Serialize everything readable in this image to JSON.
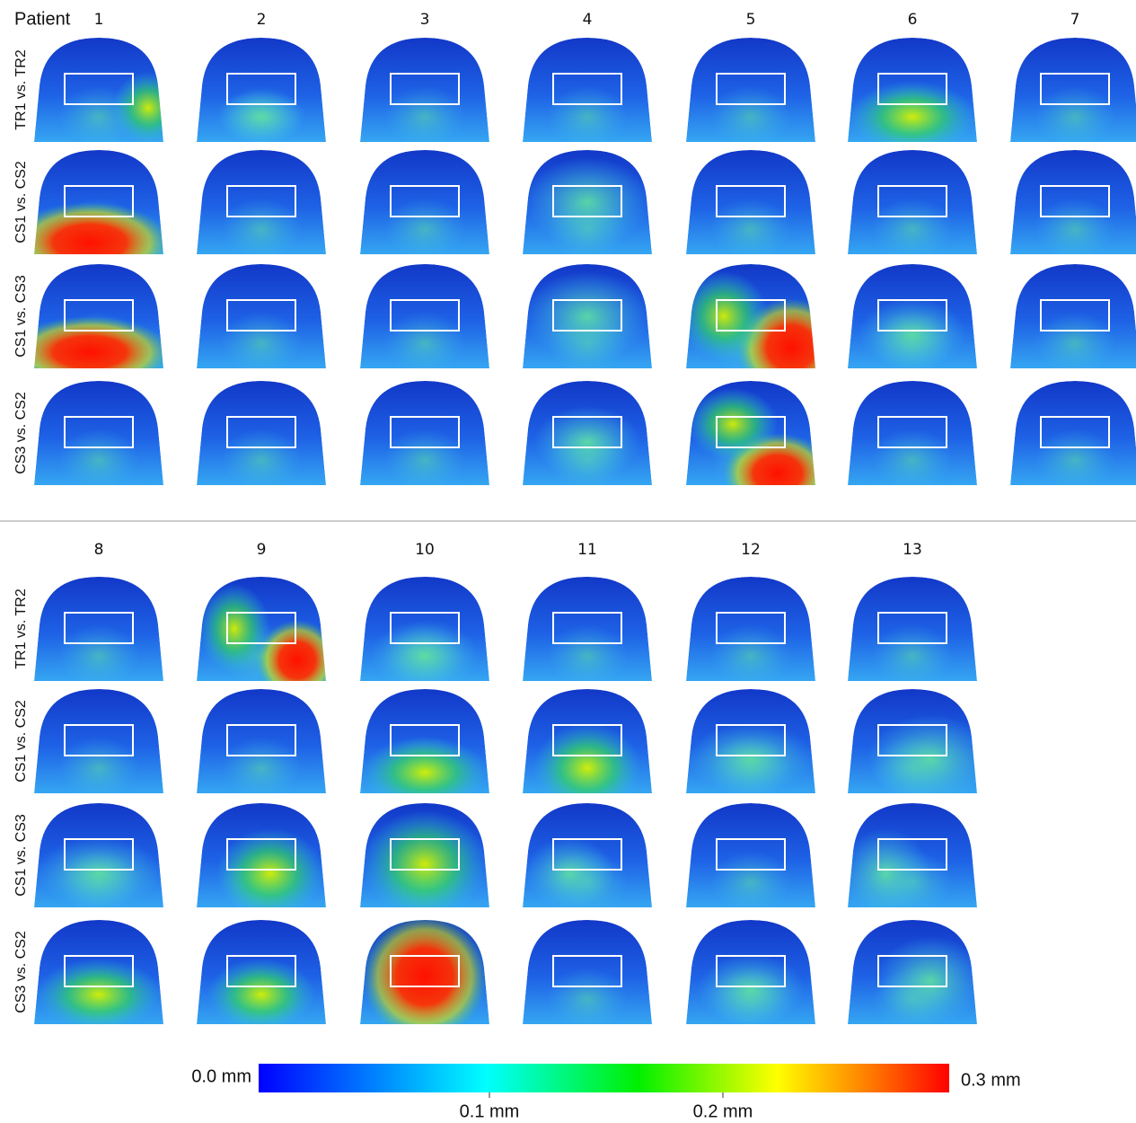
{
  "header": {
    "label": "Patient"
  },
  "panels": [
    {
      "patients": [
        "1",
        "2",
        "3",
        "4",
        "5",
        "6",
        "7"
      ],
      "row_labels": [
        "TR1 vs. TR2",
        "CS1 vs. CS2",
        "CS1 vs. CS3",
        "CS3 vs. CS2"
      ]
    },
    {
      "patients": [
        "8",
        "9",
        "10",
        "11",
        "12",
        "13"
      ],
      "row_labels": [
        "TR1 vs. TR2",
        "CS1 vs. CS2",
        "CS1 vs. CS3",
        "CS3 vs. CS2"
      ]
    }
  ],
  "colorbar": {
    "min_label": "0.0 mm",
    "max_label": "0.3 mm",
    "tick_labels": [
      "0.1 mm",
      "0.2 mm"
    ]
  }
}
